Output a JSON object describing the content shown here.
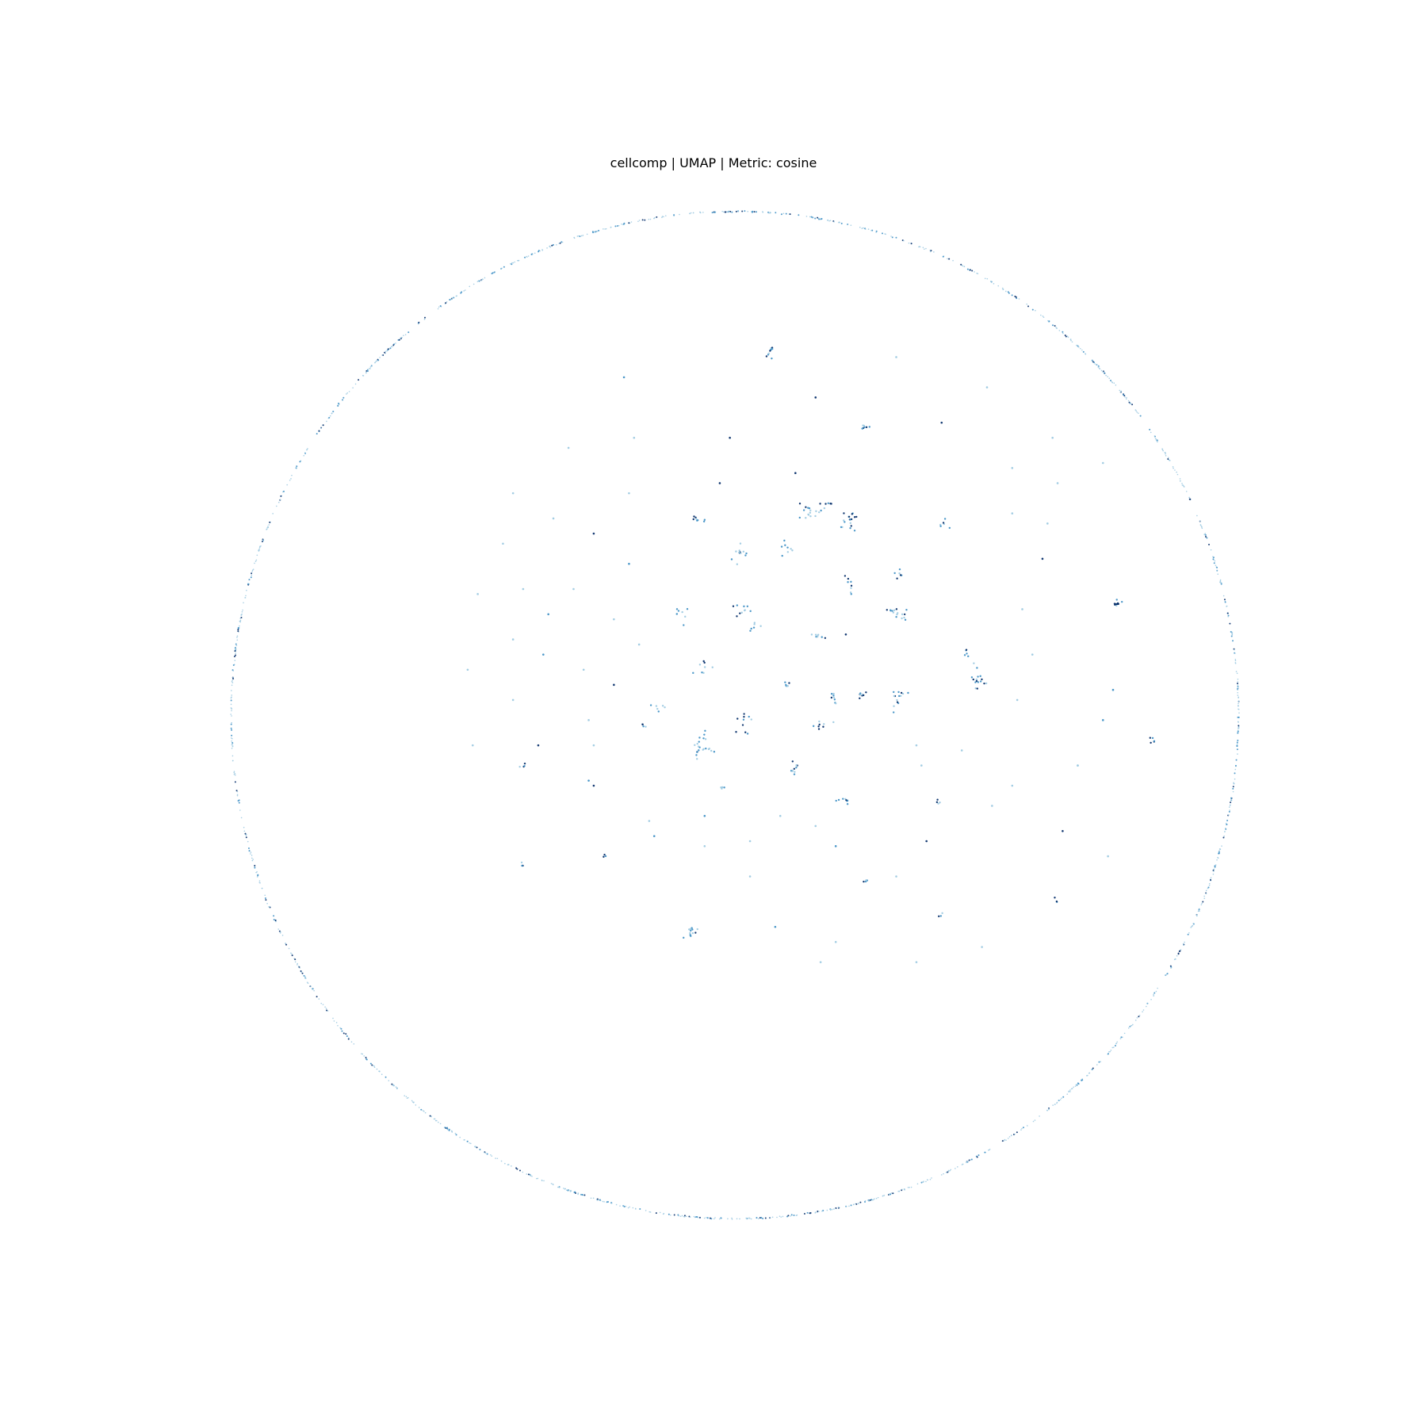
{
  "chart_data": {
    "type": "scatter",
    "title": "cellcomp | UMAP | Metric: cosine",
    "xlabel": "",
    "ylabel": "",
    "axes_visible": false,
    "grid": false,
    "legend": "none",
    "xlim": [
      -1.0,
      1.0
    ],
    "ylim": [
      -1.0,
      1.0
    ],
    "colormap": "Blues",
    "colors": {
      "light": "#9ecae1",
      "mid": "#4292c6",
      "dark": "#08306b",
      "background": "#ffffff"
    },
    "series": [
      {
        "kind": "ring",
        "description_points": "points distributed along the boundary circle of radius 1.0",
        "count": 1400,
        "radius": 1.0
      },
      {
        "kind": "clusters",
        "clusters": [
          {
            "x": 0.07,
            "y": 0.72,
            "n": 10,
            "spread": 0.01,
            "shade": "mid"
          },
          {
            "x": 0.76,
            "y": 0.22,
            "n": 12,
            "spread": 0.01,
            "shade": "dark"
          },
          {
            "x": -0.09,
            "y": -0.43,
            "n": 12,
            "spread": 0.012,
            "shade": "mid"
          },
          {
            "x": -0.07,
            "y": -0.06,
            "n": 22,
            "spread": 0.018,
            "shade": "mid"
          },
          {
            "x": 0.15,
            "y": 0.4,
            "n": 16,
            "spread": 0.02,
            "shade": "mid"
          },
          {
            "x": 0.23,
            "y": 0.39,
            "n": 18,
            "spread": 0.02,
            "shade": "dark"
          },
          {
            "x": 0.33,
            "y": 0.2,
            "n": 16,
            "spread": 0.02,
            "shade": "mid"
          },
          {
            "x": 0.32,
            "y": 0.03,
            "n": 14,
            "spread": 0.018,
            "shade": "dark"
          },
          {
            "x": 0.48,
            "y": 0.07,
            "n": 16,
            "spread": 0.02,
            "shade": "mid"
          },
          {
            "x": 0.01,
            "y": 0.32,
            "n": 12,
            "spread": 0.018,
            "shade": "mid"
          },
          {
            "x": -0.08,
            "y": 0.39,
            "n": 8,
            "spread": 0.015,
            "shade": "dark"
          },
          {
            "x": 0.1,
            "y": 0.33,
            "n": 8,
            "spread": 0.012,
            "shade": "mid"
          },
          {
            "x": 0.23,
            "y": 0.26,
            "n": 8,
            "spread": 0.015,
            "shade": "mid"
          },
          {
            "x": 0.16,
            "y": 0.16,
            "n": 8,
            "spread": 0.015,
            "shade": "mid"
          },
          {
            "x": 0.01,
            "y": 0.21,
            "n": 10,
            "spread": 0.015,
            "shade": "mid"
          },
          {
            "x": -0.11,
            "y": 0.2,
            "n": 8,
            "spread": 0.015,
            "shade": "mid"
          },
          {
            "x": 0.2,
            "y": 0.04,
            "n": 8,
            "spread": 0.015,
            "shade": "mid"
          },
          {
            "x": 0.25,
            "y": 0.04,
            "n": 8,
            "spread": 0.015,
            "shade": "dark"
          },
          {
            "x": -0.06,
            "y": 0.09,
            "n": 8,
            "spread": 0.015,
            "shade": "mid"
          },
          {
            "x": 0.02,
            "y": -0.01,
            "n": 10,
            "spread": 0.018,
            "shade": "dark"
          },
          {
            "x": 0.17,
            "y": -0.02,
            "n": 8,
            "spread": 0.015,
            "shade": "mid"
          },
          {
            "x": 0.11,
            "y": -0.11,
            "n": 10,
            "spread": 0.016,
            "shade": "mid"
          },
          {
            "x": 0.22,
            "y": -0.17,
            "n": 8,
            "spread": 0.012,
            "shade": "dark"
          },
          {
            "x": 0.26,
            "y": 0.57,
            "n": 8,
            "spread": 0.012,
            "shade": "dark"
          },
          {
            "x": 0.04,
            "y": 0.18,
            "n": 6,
            "spread": 0.01,
            "shade": "mid"
          },
          {
            "x": 0.32,
            "y": 0.28,
            "n": 6,
            "spread": 0.012,
            "shade": "mid"
          },
          {
            "x": 0.41,
            "y": 0.38,
            "n": 6,
            "spread": 0.01,
            "shade": "dark"
          },
          {
            "x": 0.46,
            "y": 0.12,
            "n": 5,
            "spread": 0.008,
            "shade": "dark"
          },
          {
            "x": 0.1,
            "y": 0.06,
            "n": 6,
            "spread": 0.01,
            "shade": "mid"
          },
          {
            "x": -0.15,
            "y": 0.02,
            "n": 6,
            "spread": 0.012,
            "shade": "mid"
          },
          {
            "x": 0.18,
            "y": 0.42,
            "n": 6,
            "spread": 0.01,
            "shade": "dark"
          },
          {
            "x": -0.42,
            "y": -0.1,
            "n": 4,
            "spread": 0.008,
            "shade": "mid"
          },
          {
            "x": 0.83,
            "y": -0.05,
            "n": 5,
            "spread": 0.008,
            "shade": "dark"
          },
          {
            "x": 0.26,
            "y": -0.33,
            "n": 4,
            "spread": 0.006,
            "shade": "mid"
          },
          {
            "x": 0.64,
            "y": -0.37,
            "n": 3,
            "spread": 0.006,
            "shade": "dark"
          },
          {
            "x": 0.41,
            "y": -0.4,
            "n": 3,
            "spread": 0.006,
            "shade": "mid"
          },
          {
            "x": -0.42,
            "y": -0.3,
            "n": 3,
            "spread": 0.006,
            "shade": "mid"
          },
          {
            "x": -0.26,
            "y": -0.28,
            "n": 3,
            "spread": 0.006,
            "shade": "mid"
          },
          {
            "x": 0.4,
            "y": -0.17,
            "n": 4,
            "spread": 0.008,
            "shade": "mid"
          },
          {
            "x": -0.02,
            "y": -0.15,
            "n": 4,
            "spread": 0.008,
            "shade": "dark"
          },
          {
            "x": -0.18,
            "y": -0.02,
            "n": 4,
            "spread": 0.008,
            "shade": "mid"
          }
        ]
      },
      {
        "kind": "isolated",
        "points": [
          {
            "x": -0.22,
            "y": 0.67,
            "shade": "mid"
          },
          {
            "x": 0.32,
            "y": 0.71,
            "shade": "light"
          },
          {
            "x": 0.16,
            "y": 0.63,
            "shade": "dark"
          },
          {
            "x": 0.5,
            "y": 0.65,
            "shade": "light"
          },
          {
            "x": 0.41,
            "y": 0.58,
            "shade": "dark"
          },
          {
            "x": -0.33,
            "y": 0.53,
            "shade": "light"
          },
          {
            "x": -0.2,
            "y": 0.55,
            "shade": "light"
          },
          {
            "x": -0.01,
            "y": 0.55,
            "shade": "dark"
          },
          {
            "x": 0.12,
            "y": 0.48,
            "shade": "dark"
          },
          {
            "x": -0.03,
            "y": 0.46,
            "shade": "dark"
          },
          {
            "x": 0.55,
            "y": 0.49,
            "shade": "light"
          },
          {
            "x": 0.63,
            "y": 0.55,
            "shade": "light"
          },
          {
            "x": 0.73,
            "y": 0.5,
            "shade": "light"
          },
          {
            "x": -0.44,
            "y": 0.44,
            "shade": "light"
          },
          {
            "x": -0.21,
            "y": 0.44,
            "shade": "light"
          },
          {
            "x": 0.64,
            "y": 0.46,
            "shade": "light"
          },
          {
            "x": -0.36,
            "y": 0.39,
            "shade": "light"
          },
          {
            "x": -0.28,
            "y": 0.36,
            "shade": "dark"
          },
          {
            "x": 0.55,
            "y": 0.4,
            "shade": "light"
          },
          {
            "x": 0.62,
            "y": 0.38,
            "shade": "light"
          },
          {
            "x": -0.46,
            "y": 0.34,
            "shade": "light"
          },
          {
            "x": -0.21,
            "y": 0.3,
            "shade": "mid"
          },
          {
            "x": 0.61,
            "y": 0.31,
            "shade": "dark"
          },
          {
            "x": -0.51,
            "y": 0.24,
            "shade": "light"
          },
          {
            "x": -0.32,
            "y": 0.25,
            "shade": "light"
          },
          {
            "x": -0.42,
            "y": 0.25,
            "shade": "light"
          },
          {
            "x": -0.24,
            "y": 0.19,
            "shade": "light"
          },
          {
            "x": 0.57,
            "y": 0.21,
            "shade": "light"
          },
          {
            "x": -0.37,
            "y": 0.2,
            "shade": "mid"
          },
          {
            "x": -0.19,
            "y": 0.14,
            "shade": "light"
          },
          {
            "x": 0.22,
            "y": 0.16,
            "shade": "dark"
          },
          {
            "x": -0.44,
            "y": 0.15,
            "shade": "light"
          },
          {
            "x": -0.38,
            "y": 0.12,
            "shade": "mid"
          },
          {
            "x": -0.53,
            "y": 0.09,
            "shade": "light"
          },
          {
            "x": 0.59,
            "y": 0.12,
            "shade": "light"
          },
          {
            "x": -0.3,
            "y": 0.09,
            "shade": "light"
          },
          {
            "x": 0.75,
            "y": 0.05,
            "shade": "mid"
          },
          {
            "x": -0.24,
            "y": 0.06,
            "shade": "dark"
          },
          {
            "x": -0.44,
            "y": 0.03,
            "shade": "light"
          },
          {
            "x": 0.56,
            "y": 0.03,
            "shade": "light"
          },
          {
            "x": 0.73,
            "y": -0.01,
            "shade": "mid"
          },
          {
            "x": -0.29,
            "y": -0.01,
            "shade": "light"
          },
          {
            "x": -0.28,
            "y": -0.06,
            "shade": "light"
          },
          {
            "x": -0.28,
            "y": -0.14,
            "shade": "dark"
          },
          {
            "x": 0.36,
            "y": -0.06,
            "shade": "light"
          },
          {
            "x": -0.52,
            "y": -0.06,
            "shade": "light"
          },
          {
            "x": -0.39,
            "y": -0.06,
            "shade": "dark"
          },
          {
            "x": 0.45,
            "y": -0.07,
            "shade": "light"
          },
          {
            "x": 0.68,
            "y": -0.1,
            "shade": "light"
          },
          {
            "x": 0.37,
            "y": -0.1,
            "shade": "light"
          },
          {
            "x": 0.55,
            "y": -0.14,
            "shade": "light"
          },
          {
            "x": 0.09,
            "y": -0.2,
            "shade": "light"
          },
          {
            "x": 0.2,
            "y": -0.26,
            "shade": "mid"
          },
          {
            "x": -0.06,
            "y": -0.2,
            "shade": "mid"
          },
          {
            "x": 0.03,
            "y": -0.25,
            "shade": "light"
          },
          {
            "x": -0.17,
            "y": -0.21,
            "shade": "light"
          },
          {
            "x": 0.51,
            "y": -0.18,
            "shade": "light"
          },
          {
            "x": 0.65,
            "y": -0.23,
            "shade": "dark"
          },
          {
            "x": 0.16,
            "y": -0.22,
            "shade": "light"
          },
          {
            "x": -0.06,
            "y": -0.26,
            "shade": "light"
          },
          {
            "x": 0.38,
            "y": -0.25,
            "shade": "dark"
          },
          {
            "x": 0.08,
            "y": -0.42,
            "shade": "mid"
          },
          {
            "x": 0.03,
            "y": -0.32,
            "shade": "light"
          },
          {
            "x": 0.32,
            "y": -0.32,
            "shade": "light"
          },
          {
            "x": 0.17,
            "y": -0.49,
            "shade": "light"
          },
          {
            "x": 0.2,
            "y": -0.45,
            "shade": "light"
          },
          {
            "x": 0.36,
            "y": -0.49,
            "shade": "light"
          },
          {
            "x": 0.49,
            "y": -0.46,
            "shade": "light"
          },
          {
            "x": -0.16,
            "y": -0.24,
            "shade": "mid"
          },
          {
            "x": -0.29,
            "y": -0.13,
            "shade": "mid"
          },
          {
            "x": 0.74,
            "y": -0.28,
            "shade": "light"
          },
          {
            "x": 0.68,
            "y": -0.1,
            "shade": "light"
          }
        ]
      }
    ]
  }
}
